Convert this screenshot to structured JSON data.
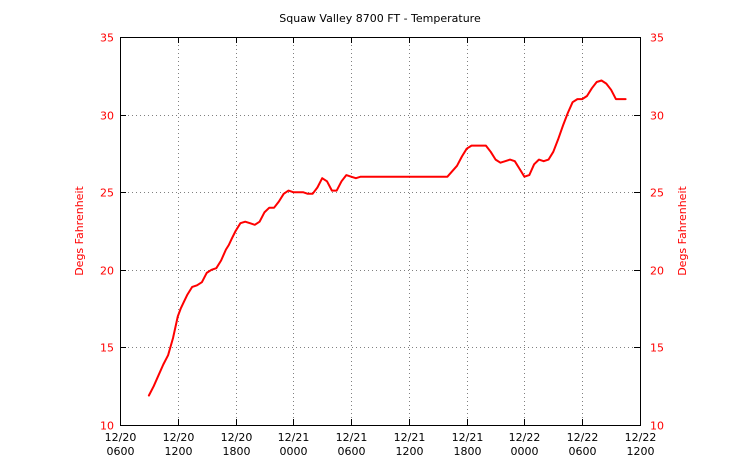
{
  "chart_data": {
    "type": "line",
    "title": "Squaw Valley 8700 FT - Temperature",
    "ylabel_left": "Degs Fahrenheit",
    "ylabel_right": "Degs Fahrenheit",
    "ylim": [
      10,
      35
    ],
    "yticks": [
      10,
      15,
      20,
      25,
      30,
      35
    ],
    "xlim_hours": [
      0,
      54
    ],
    "xticks": [
      {
        "hour": 0,
        "line1": "12/20",
        "line2": "0600"
      },
      {
        "hour": 6,
        "line1": "12/20",
        "line2": "1200"
      },
      {
        "hour": 12,
        "line1": "12/20",
        "line2": "1800"
      },
      {
        "hour": 18,
        "line1": "12/21",
        "line2": "0000"
      },
      {
        "hour": 24,
        "line1": "12/21",
        "line2": "0600"
      },
      {
        "hour": 30,
        "line1": "12/21",
        "line2": "1200"
      },
      {
        "hour": 36,
        "line1": "12/21",
        "line2": "1800"
      },
      {
        "hour": 42,
        "line1": "12/22",
        "line2": "0000"
      },
      {
        "hour": 48,
        "line1": "12/22",
        "line2": "0600"
      },
      {
        "hour": 54,
        "line1": "12/22",
        "line2": "1200"
      }
    ],
    "grid": true,
    "series": [
      {
        "color": "#ff0000",
        "x_hours": [
          3.0,
          3.5,
          4.0,
          4.5,
          5.0,
          5.5,
          6.0,
          6.3,
          6.6,
          7.0,
          7.5,
          8.0,
          8.5,
          9.0,
          9.5,
          10.0,
          10.5,
          11.0,
          11.3,
          11.6,
          12.0,
          12.5,
          13.0,
          13.5,
          14.0,
          14.5,
          15.0,
          15.5,
          16.0,
          16.5,
          17.0,
          17.5,
          18.0,
          18.5,
          19.0,
          19.5,
          20.0,
          20.5,
          21.0,
          21.5,
          22.0,
          22.5,
          23.0,
          23.5,
          24.0,
          24.5,
          25.0,
          25.5,
          26.0,
          26.5,
          27.0,
          28.0,
          29.0,
          30.0,
          31.0,
          32.0,
          33.0,
          34.0,
          35.0,
          35.5,
          36.0,
          36.5,
          37.0,
          37.5,
          38.0,
          38.5,
          39.0,
          39.5,
          40.0,
          40.5,
          41.0,
          41.5,
          42.0,
          42.5,
          43.0,
          43.5,
          44.0,
          44.5,
          45.0,
          45.5,
          46.0,
          46.5,
          47.0,
          47.5,
          48.0,
          48.5,
          49.0,
          49.5,
          50.0,
          50.5,
          51.0,
          51.5,
          52.0,
          52.5
        ],
        "y": [
          11.9,
          12.5,
          13.2,
          13.9,
          14.5,
          15.6,
          17.0,
          17.5,
          17.9,
          18.4,
          18.9,
          19.0,
          19.2,
          19.8,
          20.0,
          20.1,
          20.6,
          21.3,
          21.6,
          22.0,
          22.5,
          23.0,
          23.1,
          23.0,
          22.9,
          23.1,
          23.7,
          24.0,
          24.0,
          24.4,
          24.9,
          25.1,
          25.0,
          25.0,
          25.0,
          24.9,
          24.9,
          25.3,
          25.9,
          25.7,
          25.1,
          25.1,
          25.7,
          26.1,
          26.0,
          25.9,
          26.0,
          26.0,
          26.0,
          26.0,
          26.0,
          26.0,
          26.0,
          26.0,
          26.0,
          26.0,
          26.0,
          26.0,
          26.7,
          27.3,
          27.8,
          28.0,
          28.0,
          28.0,
          28.0,
          27.6,
          27.1,
          26.9,
          27.0,
          27.1,
          27.0,
          26.5,
          26.0,
          26.1,
          26.8,
          27.1,
          27.0,
          27.1,
          27.6,
          28.4,
          29.3,
          30.1,
          30.8,
          31.0,
          31.0,
          31.2,
          31.7,
          32.1,
          32.2,
          32.0,
          31.6,
          31.0,
          31.0,
          31.0
        ]
      }
    ]
  },
  "colors": {
    "series": "#ff0000",
    "axis_text": "#ff0000",
    "grid": "#808080",
    "frame": "#000000"
  }
}
